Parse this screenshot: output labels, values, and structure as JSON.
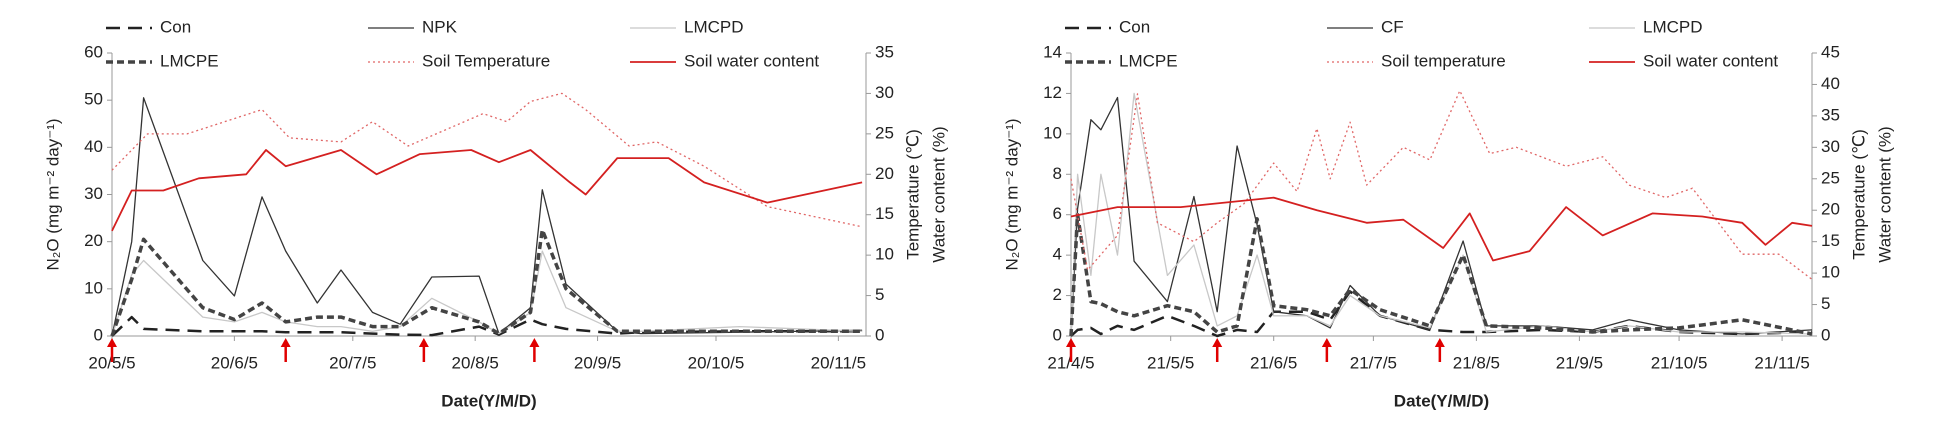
{
  "chart_data": [
    {
      "type": "line",
      "xlabel": "Date(Y/M/D)",
      "ylabel": "N₂O (mg m⁻² day⁻¹)",
      "y2labels": [
        "Temperature (℃)",
        "Water content (%)"
      ],
      "legend": "top",
      "xlim": [
        "2020-05-05",
        "2020-11-12"
      ],
      "xticks": [
        {
          "value": "2020-05-05",
          "label": "20/5/5"
        },
        {
          "value": "2020-06-05",
          "label": "20/6/5"
        },
        {
          "value": "2020-07-05",
          "label": "20/7/5"
        },
        {
          "value": "2020-08-05",
          "label": "20/8/5"
        },
        {
          "value": "2020-09-05",
          "label": "20/9/5"
        },
        {
          "value": "2020-10-05",
          "label": "20/10/5"
        },
        {
          "value": "2020-11-05",
          "label": "20/11/5"
        }
      ],
      "ylim": [
        0,
        60
      ],
      "yticks": [
        0,
        10,
        20,
        30,
        40,
        50,
        60
      ],
      "y2lim": [
        0,
        35
      ],
      "y2ticks": [
        0,
        5,
        10,
        15,
        20,
        25,
        30,
        35
      ],
      "markers": {
        "color": "#e00000",
        "x": [
          "2020-05-05",
          "2020-06-18",
          "2020-07-23",
          "2020-08-20"
        ]
      },
      "series": [
        {
          "name": "Con",
          "color": "#222222",
          "dash": "14,8",
          "width": 2.5,
          "axis": "y",
          "x": [
            "2020-05-05",
            "2020-05-10",
            "2020-05-13",
            "2020-05-28",
            "2020-06-05",
            "2020-06-12",
            "2020-06-18",
            "2020-06-26",
            "2020-07-02",
            "2020-07-10",
            "2020-07-17",
            "2020-07-25",
            "2020-08-06",
            "2020-08-11",
            "2020-08-19",
            "2020-08-22",
            "2020-08-28",
            "2020-09-10",
            "2020-09-16",
            "2020-10-11",
            "2020-11-11"
          ],
          "values": [
            0,
            4,
            1.5,
            1,
            1,
            1,
            0.8,
            0.8,
            0.8,
            0.5,
            0.3,
            0.2,
            2,
            0.3,
            3.5,
            2.5,
            1.5,
            0.5,
            0.8,
            1,
            1
          ]
        },
        {
          "name": "NPK",
          "color": "#333333",
          "dash": "",
          "width": 1.3,
          "axis": "y",
          "x": [
            "2020-05-05",
            "2020-05-10",
            "2020-05-13",
            "2020-05-28",
            "2020-06-05",
            "2020-06-12",
            "2020-06-18",
            "2020-06-26",
            "2020-07-02",
            "2020-07-10",
            "2020-07-17",
            "2020-07-25",
            "2020-08-06",
            "2020-08-11",
            "2020-08-19",
            "2020-08-22",
            "2020-08-28",
            "2020-09-10",
            "2020-09-16",
            "2020-10-11",
            "2020-11-11"
          ],
          "values": [
            0,
            20,
            50.5,
            16,
            8.5,
            29.5,
            18,
            7,
            14,
            5,
            2.5,
            12.5,
            12.7,
            0.5,
            6,
            31,
            11,
            1,
            0.5,
            0.8,
            1.2
          ]
        },
        {
          "name": "LMCPD",
          "color": "#c8c8c8",
          "dash": "",
          "width": 1.3,
          "axis": "y",
          "x": [
            "2020-05-05",
            "2020-05-10",
            "2020-05-13",
            "2020-05-28",
            "2020-06-05",
            "2020-06-12",
            "2020-06-18",
            "2020-06-26",
            "2020-07-02",
            "2020-07-10",
            "2020-07-17",
            "2020-07-25",
            "2020-08-06",
            "2020-08-11",
            "2020-08-19",
            "2020-08-22",
            "2020-08-28",
            "2020-09-10",
            "2020-09-16",
            "2020-10-11",
            "2020-11-11"
          ],
          "values": [
            0,
            13,
            16,
            4,
            3,
            5,
            3,
            2,
            2,
            1,
            2,
            8,
            3,
            0.5,
            5,
            18,
            6,
            1,
            1,
            2,
            1
          ]
        },
        {
          "name": "LMCPE",
          "color": "#444444",
          "dash": "7,4",
          "width": 3.5,
          "axis": "y",
          "x": [
            "2020-05-05",
            "2020-05-10",
            "2020-05-13",
            "2020-05-28",
            "2020-06-05",
            "2020-06-12",
            "2020-06-18",
            "2020-06-26",
            "2020-07-02",
            "2020-07-10",
            "2020-07-17",
            "2020-07-25",
            "2020-08-06",
            "2020-08-11",
            "2020-08-19",
            "2020-08-22",
            "2020-08-28",
            "2020-09-10",
            "2020-09-16",
            "2020-10-11",
            "2020-11-11"
          ],
          "values": [
            0,
            12,
            20.5,
            6,
            3.5,
            7,
            3,
            4,
            4,
            2,
            2,
            6,
            3,
            0.5,
            5,
            22.5,
            10,
            1,
            1,
            1,
            1
          ]
        },
        {
          "name": "Soil Temperature",
          "color": "#e06666",
          "dash": "2,3",
          "width": 1.3,
          "axis": "y2",
          "x": [
            "2020-05-05",
            "2020-05-14",
            "2020-05-24",
            "2020-06-12",
            "2020-06-19",
            "2020-07-02",
            "2020-07-10",
            "2020-07-19",
            "2020-08-07",
            "2020-08-13",
            "2020-08-19",
            "2020-08-27",
            "2020-09-02",
            "2020-09-13",
            "2020-09-20",
            "2020-10-02",
            "2020-10-18",
            "2020-11-11"
          ],
          "values": [
            20.5,
            25,
            25,
            28,
            24.5,
            24,
            26.5,
            23.5,
            27.5,
            26.5,
            29,
            30,
            28,
            23.5,
            24,
            21,
            16,
            13.5
          ]
        },
        {
          "name": "Soil water content",
          "color": "#d42020",
          "dash": "",
          "width": 1.8,
          "axis": "y2",
          "x": [
            "2020-05-05",
            "2020-05-10",
            "2020-05-18",
            "2020-05-27",
            "2020-06-08",
            "2020-06-13",
            "2020-06-18",
            "2020-07-02",
            "2020-07-11",
            "2020-07-22",
            "2020-08-04",
            "2020-08-11",
            "2020-08-19",
            "2020-08-29",
            "2020-09-02",
            "2020-09-10",
            "2020-09-23",
            "2020-10-02",
            "2020-10-18",
            "2020-11-11"
          ],
          "values": [
            13,
            18,
            18,
            19.5,
            20,
            23,
            21,
            23,
            20,
            22.5,
            23,
            21.5,
            23,
            19,
            17.5,
            22,
            22,
            19,
            16.5,
            19
          ]
        }
      ]
    },
    {
      "type": "line",
      "xlabel": "Date(Y/M/D)",
      "ylabel": "N₂O (mg m⁻² day⁻¹)",
      "y2labels": [
        "Temperature (℃)",
        "Water content (%)"
      ],
      "legend": "top",
      "xlim": [
        "2021-04-05",
        "2021-11-14"
      ],
      "xticks": [
        {
          "value": "2021-04-05",
          "label": "21/4/5"
        },
        {
          "value": "2021-05-05",
          "label": "21/5/5"
        },
        {
          "value": "2021-06-05",
          "label": "21/6/5"
        },
        {
          "value": "2021-07-05",
          "label": "21/7/5"
        },
        {
          "value": "2021-08-05",
          "label": "21/8/5"
        },
        {
          "value": "2021-09-05",
          "label": "21/9/5"
        },
        {
          "value": "2021-10-05",
          "label": "21/10/5"
        },
        {
          "value": "2021-11-05",
          "label": "21/11/5"
        }
      ],
      "ylim": [
        0,
        14
      ],
      "yticks": [
        0,
        2,
        4,
        6,
        8,
        10,
        12,
        14
      ],
      "y2lim": [
        0,
        45
      ],
      "y2ticks": [
        0,
        5,
        10,
        15,
        20,
        25,
        30,
        35,
        40,
        45
      ],
      "markers": {
        "color": "#e00000",
        "x": [
          "2021-04-05",
          "2021-05-19",
          "2021-06-21",
          "2021-07-25"
        ]
      },
      "series": [
        {
          "name": "Con",
          "color": "#222222",
          "dash": "14,8",
          "width": 2.5,
          "axis": "y",
          "x": [
            "2021-04-05",
            "2021-04-07",
            "2021-04-11",
            "2021-04-14",
            "2021-04-19",
            "2021-04-24",
            "2021-05-04",
            "2021-05-12",
            "2021-05-19",
            "2021-05-25",
            "2021-05-31",
            "2021-06-05",
            "2021-06-15",
            "2021-06-22",
            "2021-06-28",
            "2021-07-07",
            "2021-07-22",
            "2021-08-01",
            "2021-08-08",
            "2021-08-25",
            "2021-09-09",
            "2021-09-20",
            "2021-10-05",
            "2021-10-24",
            "2021-11-14"
          ],
          "values": [
            0,
            0.3,
            0.4,
            0.1,
            0.5,
            0.3,
            1.0,
            0.5,
            0,
            0.3,
            0.2,
            1.2,
            1.2,
            0.8,
            2.2,
            1.0,
            0.3,
            0.2,
            0.2,
            0.3,
            0.2,
            0.5,
            0.2,
            0.1,
            0.2
          ]
        },
        {
          "name": "CF",
          "color": "#333333",
          "dash": "",
          "width": 1.3,
          "axis": "y",
          "x": [
            "2021-04-05",
            "2021-04-07",
            "2021-04-11",
            "2021-04-14",
            "2021-04-19",
            "2021-04-24",
            "2021-05-04",
            "2021-05-12",
            "2021-05-19",
            "2021-05-25",
            "2021-05-31",
            "2021-06-05",
            "2021-06-15",
            "2021-06-22",
            "2021-06-28",
            "2021-07-07",
            "2021-07-22",
            "2021-08-01",
            "2021-08-08",
            "2021-08-25",
            "2021-09-09",
            "2021-09-20",
            "2021-10-05",
            "2021-10-24",
            "2021-11-14"
          ],
          "values": [
            0,
            6.3,
            10.7,
            10.2,
            11.8,
            3.7,
            1.7,
            6.9,
            1.2,
            9.4,
            5.5,
            1.2,
            1.0,
            0.4,
            2.5,
            1.0,
            0.3,
            4.7,
            0.5,
            0.5,
            0.3,
            0.8,
            0.3,
            0.1,
            0.3
          ]
        },
        {
          "name": "LMCPD",
          "color": "#c8c8c8",
          "dash": "",
          "width": 1.3,
          "axis": "y",
          "x": [
            "2021-04-05",
            "2021-04-07",
            "2021-04-11",
            "2021-04-14",
            "2021-04-19",
            "2021-04-24",
            "2021-05-04",
            "2021-05-12",
            "2021-05-19",
            "2021-05-25",
            "2021-05-31",
            "2021-06-05",
            "2021-06-15",
            "2021-06-22",
            "2021-06-28",
            "2021-07-07",
            "2021-07-22",
            "2021-08-01",
            "2021-08-08",
            "2021-08-25",
            "2021-09-09",
            "2021-09-20",
            "2021-10-05",
            "2021-10-24",
            "2021-11-14"
          ],
          "values": [
            0,
            8,
            3,
            8,
            4,
            12,
            3,
            4.5,
            0.5,
            1,
            4,
            1,
            1,
            0.5,
            2,
            1,
            0.4,
            4,
            0.2,
            0.5,
            0.2,
            0.5,
            0.2,
            0.2,
            0.1
          ]
        },
        {
          "name": "LMCPE",
          "color": "#444444",
          "dash": "7,4",
          "width": 3.5,
          "axis": "y",
          "x": [
            "2021-04-05",
            "2021-04-07",
            "2021-04-11",
            "2021-04-14",
            "2021-04-19",
            "2021-04-24",
            "2021-05-04",
            "2021-05-12",
            "2021-05-19",
            "2021-05-25",
            "2021-05-31",
            "2021-06-05",
            "2021-06-15",
            "2021-06-22",
            "2021-06-28",
            "2021-07-07",
            "2021-07-22",
            "2021-08-01",
            "2021-08-08",
            "2021-08-25",
            "2021-09-09",
            "2021-09-20",
            "2021-10-05",
            "2021-10-24",
            "2021-11-14"
          ],
          "values": [
            0,
            6,
            1.7,
            1.6,
            1.2,
            1.0,
            1.5,
            1.2,
            0.2,
            0.5,
            5.8,
            1.5,
            1.3,
            1.0,
            2.3,
            1.3,
            0.5,
            4,
            0.5,
            0.4,
            0.2,
            0.3,
            0.4,
            0.8,
            0.1
          ]
        },
        {
          "name": "Soil temperature",
          "color": "#e06666",
          "dash": "2,3",
          "width": 1.3,
          "axis": "y2",
          "x": [
            "2021-04-05",
            "2021-04-10",
            "2021-04-19",
            "2021-04-25",
            "2021-05-01",
            "2021-05-12",
            "2021-05-19",
            "2021-05-27",
            "2021-06-05",
            "2021-06-12",
            "2021-06-18",
            "2021-06-22",
            "2021-06-28",
            "2021-07-03",
            "2021-07-14",
            "2021-07-22",
            "2021-07-31",
            "2021-08-09",
            "2021-08-17",
            "2021-09-01",
            "2021-09-12",
            "2021-09-20",
            "2021-10-01",
            "2021-10-09",
            "2021-10-24",
            "2021-11-04",
            "2021-11-14"
          ],
          "values": [
            25,
            10.5,
            16,
            38.5,
            18,
            15,
            18,
            21,
            27.5,
            23,
            33,
            25,
            34,
            24,
            30,
            28,
            39,
            29,
            30,
            27,
            28.5,
            24,
            22,
            23.5,
            13,
            13,
            9
          ]
        },
        {
          "name": "Soil water content",
          "color": "#d42020",
          "dash": "",
          "width": 1.8,
          "axis": "y2",
          "x": [
            "2021-04-05",
            "2021-04-19",
            "2021-05-08",
            "2021-06-05",
            "2021-06-18",
            "2021-07-03",
            "2021-07-14",
            "2021-07-26",
            "2021-08-03",
            "2021-08-10",
            "2021-08-21",
            "2021-09-01",
            "2021-09-12",
            "2021-09-27",
            "2021-10-12",
            "2021-10-24",
            "2021-10-31",
            "2021-11-08",
            "2021-11-14"
          ],
          "values": [
            19,
            20.5,
            20.5,
            22,
            20,
            18,
            18.5,
            14,
            19.5,
            12,
            13.5,
            20.5,
            16,
            19.5,
            19,
            18,
            14.5,
            18,
            17.5
          ]
        }
      ]
    }
  ]
}
